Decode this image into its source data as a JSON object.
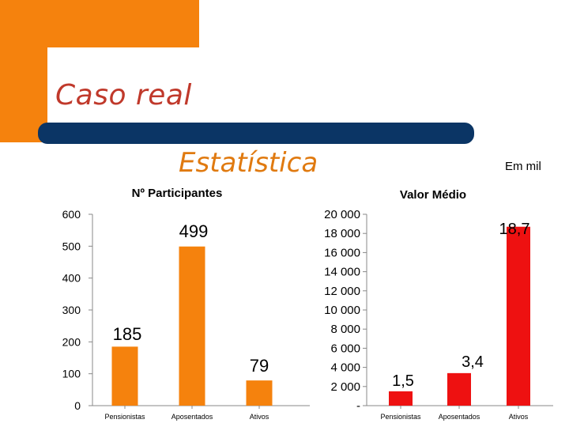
{
  "slide": {
    "title": "Caso real",
    "subtitle": "Estatística",
    "unit_note": "Em mil"
  },
  "colors": {
    "accent_orange": "#f5820d",
    "dark_blue": "#0b3565",
    "title_red": "#c0392b",
    "bar_red": "#ee1111"
  },
  "chart_data": [
    {
      "type": "bar",
      "title": "Nº Participantes",
      "categories": [
        "Pensionistas",
        "Aposentados",
        "Ativos"
      ],
      "values": [
        185,
        499,
        79
      ],
      "data_labels": [
        "185",
        "499",
        "79"
      ],
      "yticks": [
        "0",
        "100",
        "200",
        "300",
        "400",
        "500",
        "600"
      ],
      "ylim": [
        0,
        600
      ],
      "color": "#f5820d",
      "grid": false
    },
    {
      "type": "bar",
      "title": "Valor Médio",
      "categories": [
        "Pensionistas",
        "Aposentados",
        "Ativos"
      ],
      "values": [
        1.5,
        3.4,
        18.7
      ],
      "data_labels": [
        "1,5",
        "3,4",
        "18,7"
      ],
      "yticks": [
        "-",
        "2 000",
        "4 000",
        "6 000",
        "8 000",
        "10 000",
        "12 000",
        "14 000",
        "16 000",
        "18 000",
        "20 000"
      ],
      "ylim": [
        0,
        20
      ],
      "color": "#ee1111",
      "grid": false
    }
  ]
}
